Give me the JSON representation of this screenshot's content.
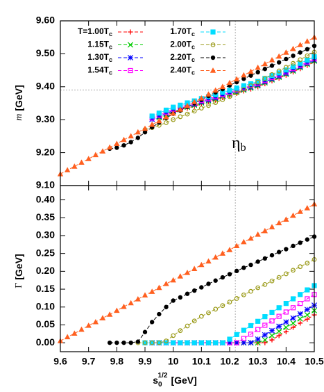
{
  "chart_data": [
    {
      "type": "line",
      "ylabel": {
        "symbol": "m",
        "unit": "[GeV]"
      },
      "annotation": {
        "text": "η",
        "sub": "b"
      },
      "ylim": [
        9.1,
        9.6
      ],
      "yticks": [
        {
          "value": 9.1,
          "label": "9.10"
        },
        {
          "value": 9.2,
          "label": "9.20"
        },
        {
          "value": 9.3,
          "label": "9.30"
        },
        {
          "value": 9.4,
          "label": "9.40"
        },
        {
          "value": 9.5,
          "label": "9.50"
        },
        {
          "value": 9.6,
          "label": "9.60"
        }
      ],
      "hline": 9.39,
      "vline": 10.22,
      "x": [
        9.6,
        9.625,
        9.65,
        9.675,
        9.7,
        9.725,
        9.75,
        9.775,
        9.8,
        9.825,
        9.85,
        9.875,
        9.9,
        9.925,
        9.95,
        9.975,
        10,
        10.025,
        10.05,
        10.075,
        10.1,
        10.125,
        10.15,
        10.175,
        10.2,
        10.225,
        10.25,
        10.275,
        10.3,
        10.325,
        10.35,
        10.375,
        10.4,
        10.425,
        10.45,
        10.475,
        10.5
      ],
      "series": [
        {
          "name": "T=1.00Tc",
          "color": "#ff0000",
          "marker": "plus",
          "values": [
            null,
            null,
            null,
            null,
            null,
            null,
            null,
            null,
            null,
            null,
            null,
            null,
            null,
            null,
            9.304,
            9.313,
            9.322,
            9.328,
            9.335,
            9.341,
            9.348,
            9.354,
            9.36,
            9.367,
            9.373,
            9.38,
            9.387,
            9.393,
            9.4,
            9.409,
            9.418,
            9.426,
            9.435,
            9.445,
            9.455,
            9.465,
            9.475
          ]
        },
        {
          "name": "1.15Tc",
          "color": "#00cc00",
          "marker": "cross",
          "values": [
            null,
            null,
            null,
            null,
            null,
            null,
            null,
            null,
            null,
            null,
            null,
            null,
            null,
            null,
            9.307,
            9.316,
            9.325,
            9.331,
            9.338,
            9.344,
            9.351,
            9.357,
            9.363,
            9.37,
            9.376,
            9.383,
            9.39,
            9.396,
            9.403,
            9.412,
            9.421,
            9.429,
            9.438,
            9.448,
            9.458,
            9.468,
            9.478
          ]
        },
        {
          "name": "1.30Tc",
          "color": "#0000ff",
          "marker": "star",
          "values": [
            null,
            null,
            null,
            null,
            null,
            null,
            null,
            null,
            null,
            null,
            null,
            null,
            null,
            9.301,
            9.31,
            9.319,
            9.328,
            9.334,
            9.341,
            9.347,
            9.354,
            9.36,
            9.366,
            9.373,
            9.379,
            9.386,
            9.393,
            9.399,
            9.406,
            9.415,
            9.424,
            9.432,
            9.441,
            9.451,
            9.461,
            9.471,
            9.481
          ]
        },
        {
          "name": "1.54Tc",
          "color": "#ff00ff",
          "marker": "square-open",
          "values": [
            null,
            null,
            null,
            null,
            null,
            null,
            null,
            null,
            null,
            null,
            null,
            null,
            null,
            9.305,
            9.314,
            9.323,
            9.332,
            9.338,
            9.345,
            9.351,
            9.358,
            9.364,
            9.37,
            9.377,
            9.383,
            9.39,
            9.397,
            9.403,
            9.41,
            9.419,
            9.428,
            9.436,
            9.445,
            9.455,
            9.465,
            9.475,
            9.485
          ]
        },
        {
          "name": "1.70Tc",
          "color": "#00ddff",
          "marker": "square",
          "values": [
            null,
            null,
            null,
            null,
            null,
            null,
            null,
            null,
            null,
            null,
            null,
            null,
            null,
            9.311,
            9.32,
            9.329,
            9.338,
            9.344,
            9.351,
            9.357,
            9.364,
            9.37,
            9.376,
            9.383,
            9.389,
            9.396,
            9.403,
            9.409,
            9.416,
            9.425,
            9.434,
            9.442,
            9.451,
            9.461,
            9.471,
            9.481,
            9.491
          ]
        },
        {
          "name": "2.00Tc",
          "color": "#9b9b1a",
          "marker": "circle-open",
          "values": [
            null,
            null,
            null,
            null,
            null,
            null,
            null,
            null,
            null,
            null,
            null,
            null,
            9.27,
            9.276,
            9.283,
            9.291,
            9.3,
            9.309,
            9.317,
            9.326,
            9.335,
            9.343,
            9.352,
            9.361,
            9.37,
            9.381,
            9.392,
            9.403,
            9.414,
            9.425,
            9.437,
            9.448,
            9.459,
            9.471,
            9.482,
            9.494,
            9.505
          ]
        },
        {
          "name": "2.20Tc",
          "color": "#000000",
          "marker": "circle",
          "values": [
            null,
            null,
            null,
            null,
            null,
            null,
            null,
            9.212,
            9.215,
            9.222,
            9.232,
            9.245,
            9.262,
            9.277,
            9.291,
            9.305,
            9.318,
            9.328,
            9.339,
            9.35,
            9.361,
            9.372,
            9.383,
            9.393,
            9.404,
            9.414,
            9.424,
            9.434,
            9.444,
            9.454,
            9.464,
            9.474,
            9.484,
            9.494,
            9.504,
            9.514,
            9.524
          ]
        },
        {
          "name": "2.40Tc",
          "color": "#ff6020",
          "marker": "triangle",
          "values": [
            9.135,
            9.147,
            9.158,
            9.17,
            9.181,
            9.193,
            9.204,
            9.216,
            9.227,
            9.239,
            9.25,
            9.262,
            9.273,
            9.285,
            9.296,
            9.308,
            9.319,
            9.331,
            9.342,
            9.354,
            9.365,
            9.377,
            9.389,
            9.4,
            9.412,
            9.423,
            9.435,
            9.446,
            9.458,
            9.469,
            9.481,
            9.492,
            9.504,
            9.515,
            9.527,
            9.538,
            9.55
          ]
        }
      ]
    },
    {
      "type": "line",
      "ylabel": {
        "symbol": "Γ",
        "unit": "[GeV]"
      },
      "xlabel": {
        "text": "s",
        "sub": "0",
        "sup": "1/2",
        "unit": "[GeV]"
      },
      "xlim": [
        9.6,
        10.5
      ],
      "xticks": [
        9.6,
        9.7,
        9.8,
        9.9,
        10,
        10.1,
        10.2,
        10.3,
        10.4,
        10.5
      ],
      "ylim": [
        -0.025,
        0.44
      ],
      "yticks": [
        {
          "value": 0,
          "label": "0.00"
        },
        {
          "value": 0.05,
          "label": "0.05"
        },
        {
          "value": 0.1,
          "label": "0.10"
        },
        {
          "value": 0.15,
          "label": "0.15"
        },
        {
          "value": 0.2,
          "label": "0.20"
        },
        {
          "value": 0.25,
          "label": "0.25"
        },
        {
          "value": 0.3,
          "label": "0.30"
        },
        {
          "value": 0.35,
          "label": "0.35"
        },
        {
          "value": 0.4,
          "label": "0.40"
        }
      ],
      "vline": 10.22,
      "x": [
        9.6,
        9.625,
        9.65,
        9.675,
        9.7,
        9.725,
        9.75,
        9.775,
        9.8,
        9.825,
        9.85,
        9.875,
        9.9,
        9.925,
        9.95,
        9.975,
        10,
        10.025,
        10.05,
        10.075,
        10.1,
        10.125,
        10.15,
        10.175,
        10.2,
        10.225,
        10.25,
        10.275,
        10.3,
        10.325,
        10.35,
        10.375,
        10.4,
        10.425,
        10.45,
        10.475,
        10.5
      ],
      "series": [
        {
          "color": "#ff0000",
          "marker": "plus",
          "values": [
            null,
            null,
            null,
            null,
            null,
            null,
            null,
            null,
            null,
            null,
            null,
            null,
            null,
            null,
            0,
            0,
            0,
            0,
            0,
            0,
            0,
            0,
            0,
            0,
            0,
            0,
            0,
            0,
            0,
            0,
            0.008,
            0.02,
            0.031,
            0.043,
            0.055,
            0.066,
            0.078
          ]
        },
        {
          "color": "#00cc00",
          "marker": "cross",
          "values": [
            null,
            null,
            null,
            null,
            null,
            null,
            null,
            null,
            null,
            null,
            null,
            null,
            null,
            null,
            0,
            0,
            0,
            0,
            0,
            0,
            0,
            0,
            0,
            0,
            0,
            0,
            0,
            0,
            0,
            0.008,
            0.02,
            0.032,
            0.043,
            0.055,
            0.067,
            0.078,
            0.09
          ]
        },
        {
          "color": "#0000ff",
          "marker": "star",
          "values": [
            null,
            null,
            null,
            null,
            null,
            null,
            null,
            null,
            null,
            null,
            null,
            null,
            null,
            0,
            0,
            0,
            0,
            0,
            0,
            0,
            0,
            0,
            0,
            0,
            0,
            0,
            0,
            0,
            0.01,
            0.022,
            0.034,
            0.046,
            0.058,
            0.069,
            0.081,
            0.093,
            0.105
          ]
        },
        {
          "color": "#ff00ff",
          "marker": "square-open",
          "values": [
            null,
            null,
            null,
            null,
            null,
            null,
            null,
            null,
            null,
            null,
            null,
            null,
            null,
            0,
            0,
            0,
            0,
            0,
            0,
            0,
            0,
            0,
            0,
            0,
            0,
            0,
            0.012,
            0.024,
            0.037,
            0.049,
            0.061,
            0.074,
            0.086,
            0.098,
            0.11,
            0.123,
            0.135
          ]
        },
        {
          "color": "#00ddff",
          "marker": "square",
          "values": [
            null,
            null,
            null,
            null,
            null,
            null,
            null,
            null,
            null,
            null,
            null,
            null,
            0,
            0,
            0,
            0,
            0,
            0,
            0,
            0,
            0,
            0,
            0,
            0,
            0.01,
            0.023,
            0.035,
            0.048,
            0.06,
            0.073,
            0.085,
            0.098,
            0.11,
            0.123,
            0.135,
            0.148,
            0.16
          ]
        },
        {
          "color": "#9b9b1a",
          "marker": "circle-open",
          "values": [
            null,
            null,
            null,
            null,
            null,
            null,
            null,
            null,
            null,
            null,
            null,
            0,
            0,
            0,
            0,
            0.005,
            0.02,
            0.034,
            0.047,
            0.061,
            0.074,
            0.084,
            0.094,
            0.104,
            0.114,
            0.124,
            0.134,
            0.144,
            0.154,
            0.163,
            0.173,
            0.183,
            0.193,
            0.203,
            0.213,
            0.223,
            0.233
          ]
        },
        {
          "color": "#000000",
          "marker": "circle",
          "values": [
            null,
            null,
            null,
            null,
            null,
            null,
            null,
            0,
            0,
            0,
            0,
            0.003,
            0.03,
            0.058,
            0.08,
            0.1,
            0.118,
            0.127,
            0.137,
            0.146,
            0.155,
            0.165,
            0.174,
            0.183,
            0.192,
            0.201,
            0.21,
            0.218,
            0.227,
            0.236,
            0.245,
            0.254,
            0.262,
            0.271,
            0.28,
            0.289,
            0.297
          ]
        },
        {
          "color": "#ff6020",
          "marker": "triangle",
          "values": [
            0.005,
            0.016,
            0.026,
            0.037,
            0.048,
            0.058,
            0.069,
            0.079,
            0.09,
            0.101,
            0.111,
            0.122,
            0.133,
            0.143,
            0.154,
            0.165,
            0.175,
            0.186,
            0.196,
            0.207,
            0.218,
            0.228,
            0.239,
            0.25,
            0.26,
            0.271,
            0.282,
            0.292,
            0.303,
            0.313,
            0.324,
            0.335,
            0.345,
            0.356,
            0.367,
            0.377,
            0.388
          ]
        }
      ]
    }
  ]
}
